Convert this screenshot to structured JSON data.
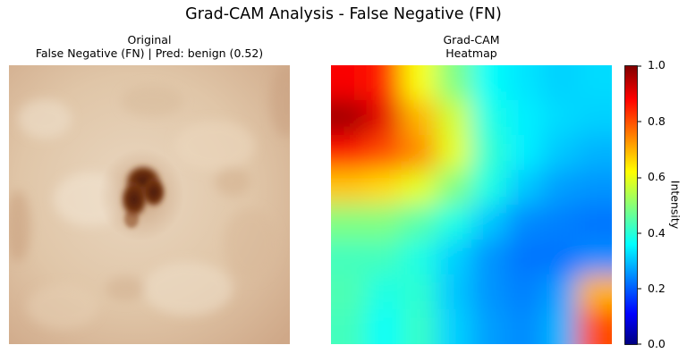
{
  "figure": {
    "suptitle": "Grad-CAM Analysis - False Negative (FN)"
  },
  "left_panel": {
    "title_line1": "Original",
    "title_line2": "False Negative (FN) | Pred: benign (0.52)"
  },
  "right_panel": {
    "title_line1": "Grad-CAM",
    "title_line2": "Heatmap"
  },
  "colorbar": {
    "label": "Intensity",
    "colormap": "jet",
    "ticks": [
      "1.0",
      "0.8",
      "0.6",
      "0.4",
      "0.2",
      "0.0"
    ]
  },
  "chart_data": {
    "type": "heatmap",
    "title": "Grad-CAM Heatmap",
    "colormap": "jet",
    "vmin": 0.0,
    "vmax": 1.0,
    "grid": false,
    "values": [
      [
        0.88,
        0.85,
        0.62,
        0.5,
        0.38,
        0.35,
        0.33,
        0.34
      ],
      [
        0.97,
        0.9,
        0.7,
        0.58,
        0.4,
        0.36,
        0.34,
        0.33
      ],
      [
        0.86,
        0.8,
        0.74,
        0.6,
        0.42,
        0.36,
        0.32,
        0.3
      ],
      [
        0.68,
        0.66,
        0.6,
        0.5,
        0.4,
        0.32,
        0.28,
        0.27
      ],
      [
        0.5,
        0.5,
        0.46,
        0.4,
        0.32,
        0.26,
        0.25,
        0.24
      ],
      [
        0.44,
        0.44,
        0.4,
        0.33,
        0.27,
        0.24,
        0.24,
        0.26
      ],
      [
        0.45,
        0.4,
        0.42,
        0.32,
        0.27,
        0.25,
        0.28,
        0.7
      ],
      [
        0.44,
        0.38,
        0.43,
        0.33,
        0.28,
        0.26,
        0.3,
        0.8
      ]
    ]
  }
}
